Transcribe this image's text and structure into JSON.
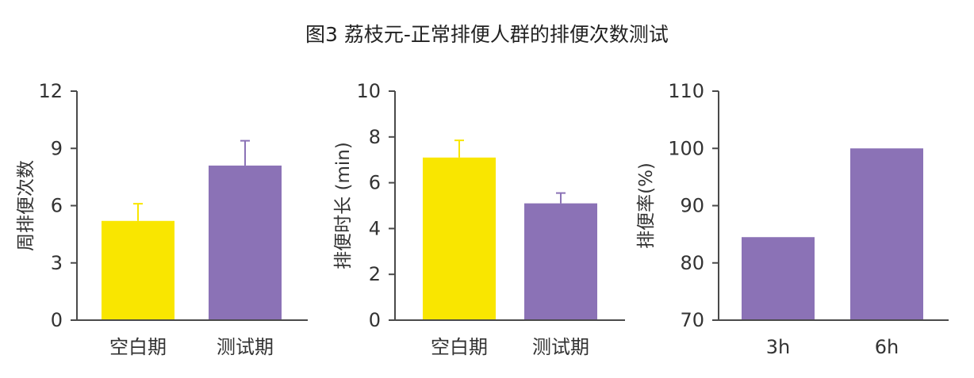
{
  "title": "图3 荔枝元-正常排便人群的排便次数测试",
  "chart_data": [
    {
      "type": "bar",
      "categories": [
        "空白期",
        "测试期"
      ],
      "values": [
        5.2,
        8.1
      ],
      "error": [
        0.9,
        1.3
      ],
      "colors": [
        "#f9e600",
        "#8b72b6"
      ],
      "ylabel": "周排便次数",
      "ylim": [
        0,
        12
      ],
      "yticks": [
        "0",
        "3",
        "6",
        "9",
        "12"
      ],
      "ytick_values": [
        0,
        3,
        6,
        9,
        12
      ]
    },
    {
      "type": "bar",
      "categories": [
        "空白期",
        "测试期"
      ],
      "values": [
        7.1,
        5.1
      ],
      "error": [
        0.75,
        0.45
      ],
      "colors": [
        "#f9e600",
        "#8b72b6"
      ],
      "ylabel": "排便时长 (min)",
      "ylim": [
        0,
        10
      ],
      "yticks": [
        "0",
        "2",
        "4",
        "6",
        "8",
        "10"
      ],
      "ytick_values": [
        0,
        2,
        4,
        6,
        8,
        10
      ]
    },
    {
      "type": "bar",
      "categories": [
        "3h",
        "6h"
      ],
      "values": [
        84.5,
        100
      ],
      "colors": [
        "#8b72b6",
        "#8b72b6"
      ],
      "ylabel": "排便率(%)",
      "ylim": [
        70,
        110
      ],
      "yticks": [
        "70",
        "80",
        "90",
        "100",
        "110"
      ],
      "ytick_values": [
        70,
        80,
        90,
        100,
        110
      ]
    }
  ]
}
